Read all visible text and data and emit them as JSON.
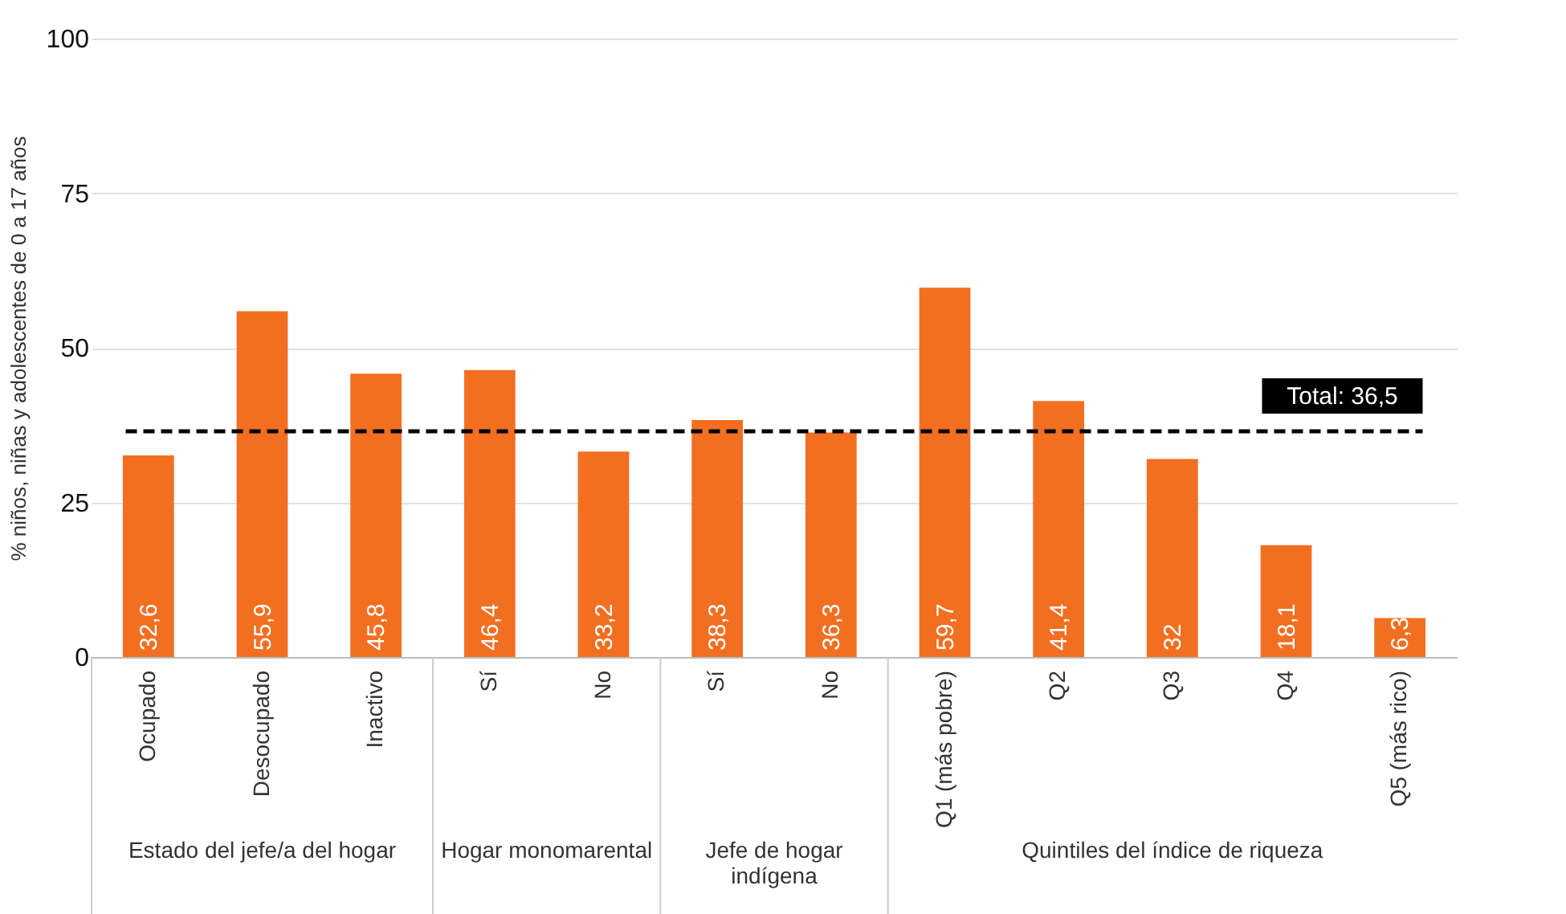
{
  "chart_data": {
    "type": "bar",
    "ylabel": "% niños, niñas y adolescentes de 0 a 17 años",
    "categories": [
      "Ocupado",
      "Desocupado",
      "Inactivo",
      "Sí",
      "No",
      "Sí",
      "No",
      "Q1 (más pobre)",
      "Q2",
      "Q3",
      "Q4",
      "Q5 (más rico)"
    ],
    "values": [
      32.6,
      55.9,
      45.8,
      46.4,
      33.2,
      38.3,
      36.3,
      59.7,
      41.4,
      32,
      18.1,
      6.3
    ],
    "value_labels": [
      "32,6",
      "55,9",
      "45,8",
      "46,4",
      "33,2",
      "38,3",
      "36,3",
      "59,7",
      "41,4",
      "32",
      "18,1",
      "6,3"
    ],
    "color": "#f26f21",
    "ylim": [
      0,
      100
    ],
    "yticks": [
      0,
      25,
      50,
      75,
      100
    ],
    "grid": "y",
    "ref_lines": [
      {
        "axis": "y",
        "value": 36.5,
        "label": "Total: 36,5",
        "color": "#000000",
        "line_style": "dashed"
      }
    ],
    "annotations": [
      "Estado del jefe/a del hogar",
      "Hogar monomarental",
      "Jefe de hogar indígena",
      "Quintiles del índice de riqueza"
    ]
  }
}
